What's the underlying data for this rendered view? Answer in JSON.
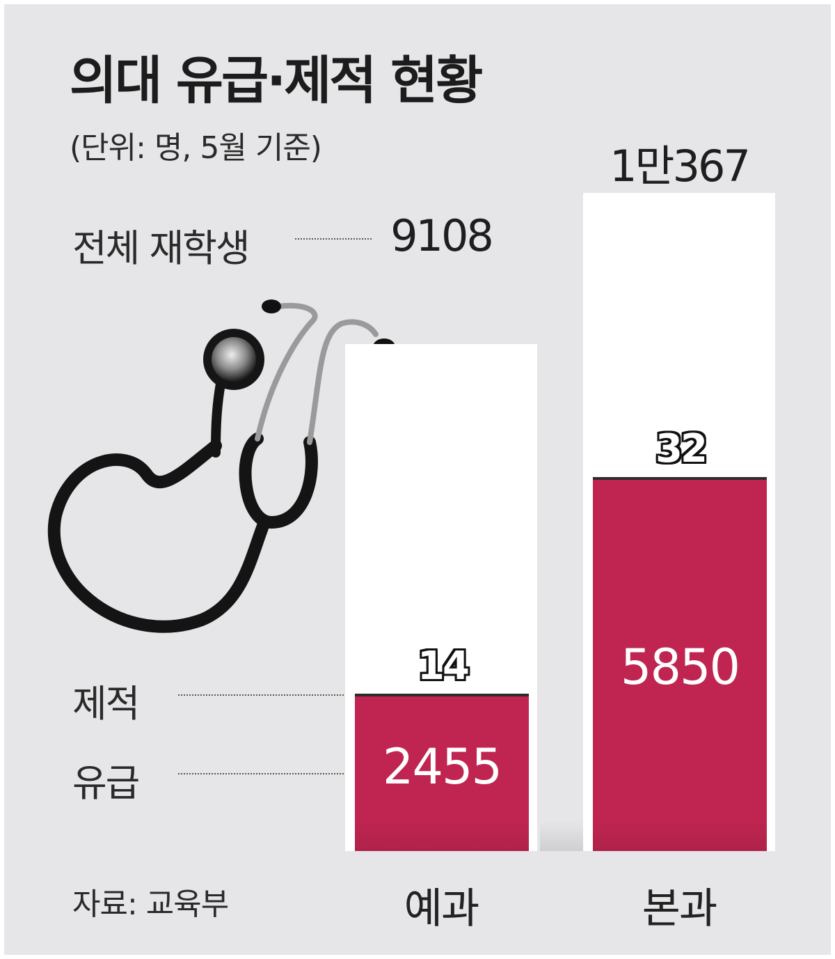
{
  "title": "의대 유급·제적 현황",
  "subtitle": "(단위: 명, 5월 기준)",
  "source": "자료: 교육부",
  "labels": {
    "total": "전체 재학생",
    "expelled": "제적",
    "held_back": "유급"
  },
  "colors": {
    "held_back": "#bf2550",
    "background": "#e6e6e8",
    "total": "#ffffff"
  },
  "chart_data": {
    "type": "bar",
    "title": "의대 유급·제적 현황",
    "subtitle": "(단위: 명, 5월 기준)",
    "categories": [
      "예과",
      "본과"
    ],
    "series": [
      {
        "name": "전체 재학생",
        "values": [
          9108,
          10367
        ],
        "display": [
          "9108",
          "1만367"
        ]
      },
      {
        "name": "유급",
        "values": [
          2455,
          5850
        ],
        "display": [
          "2455",
          "5850"
        ]
      },
      {
        "name": "제적",
        "values": [
          14,
          32
        ],
        "display": [
          "14",
          "32"
        ]
      }
    ],
    "ylim": [
      0,
      10367
    ],
    "grid": false
  },
  "icons": {
    "illustration": "stethoscope-icon"
  }
}
